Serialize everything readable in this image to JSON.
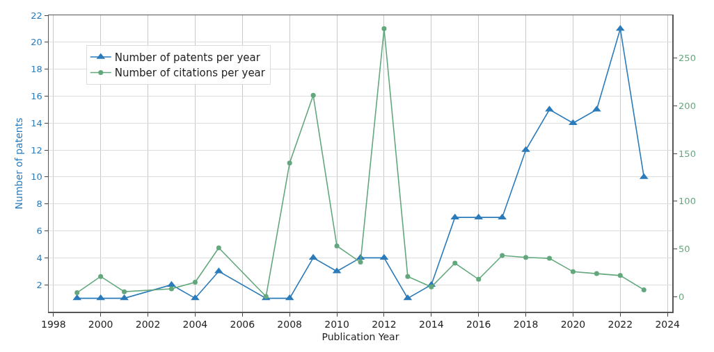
{
  "chart_data": {
    "type": "line",
    "xlabel": "Publication Year",
    "ylabel": "Number of patents",
    "x": [
      1999,
      2000,
      2001,
      2003,
      2004,
      2005,
      2007,
      2008,
      2009,
      2010,
      2011,
      2012,
      2013,
      2014,
      2015,
      2016,
      2017,
      2018,
      2019,
      2020,
      2021,
      2022,
      2023
    ],
    "series": [
      {
        "name": "Number of patents per year",
        "color": "#2b7bba",
        "marker": "triangle",
        "axis": "y",
        "values": [
          1,
          1,
          1,
          2,
          1,
          3,
          1,
          1,
          4,
          3,
          4,
          4,
          1,
          2,
          7,
          7,
          7,
          12,
          15,
          14,
          15,
          21,
          10
        ]
      },
      {
        "name": "Number of citations per year",
        "color": "#62a87c",
        "marker": "circle",
        "axis": "y2",
        "values": [
          4,
          21,
          5,
          8,
          15,
          51,
          0,
          140,
          211,
          53,
          36,
          281,
          21,
          10,
          35,
          18,
          43,
          41,
          40,
          26,
          24,
          22,
          7
        ]
      }
    ],
    "xlim": [
      1997.8,
      2024.2
    ],
    "xticks": [
      1998,
      2000,
      2002,
      2004,
      2006,
      2008,
      2010,
      2012,
      2014,
      2016,
      2018,
      2020,
      2022,
      2024
    ],
    "ylim": [
      0,
      22
    ],
    "yticks": [
      2,
      4,
      6,
      8,
      10,
      12,
      14,
      16,
      18,
      20,
      22
    ],
    "y2lim": [
      -16,
      295
    ],
    "y2ticks": [
      0,
      50,
      100,
      150,
      200,
      250
    ],
    "grid": true,
    "legend": "top left",
    "line_style": "solid"
  }
}
